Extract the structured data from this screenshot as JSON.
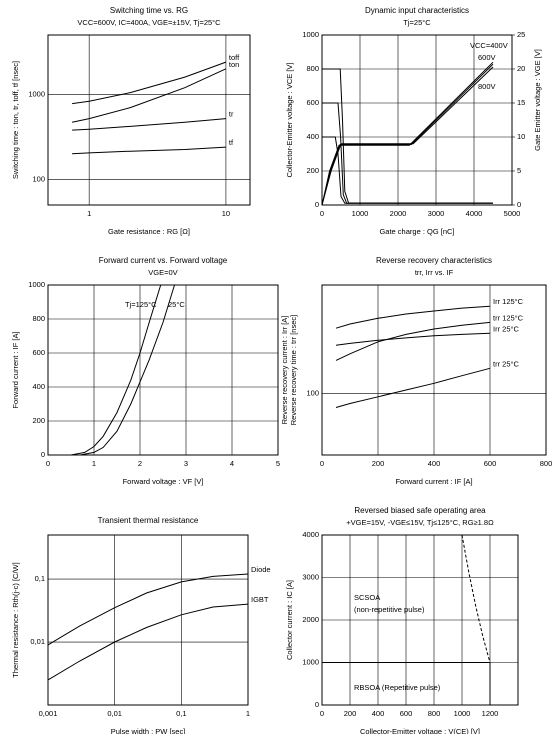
{
  "chart_data": [
    {
      "type": "line",
      "title": "Switching time vs. RG",
      "subtitle": "VCC=600V, IC=400A, VGE=±15V, Tj=25°C",
      "xlabel": "Gate resistance : RG [Ω]",
      "ylabel": "Switching time : ton, tr, toff, tf [nsec]",
      "xscale": "log",
      "yscale": "log",
      "xlim": [
        0.5,
        15
      ],
      "ylim": [
        50,
        5000
      ],
      "xticks": [
        1,
        10
      ],
      "yticks": [
        100,
        1000
      ],
      "grid": true,
      "series": [
        {
          "name": "toff",
          "color": "#000000",
          "x": [
            0.75,
            1,
            2,
            5,
            10
          ],
          "values": [
            780,
            830,
            1050,
            1600,
            2400
          ]
        },
        {
          "name": "ton",
          "color": "#000000",
          "x": [
            0.75,
            1,
            2,
            5,
            10
          ],
          "values": [
            470,
            520,
            700,
            1200,
            2000
          ]
        },
        {
          "name": "tr",
          "color": "#000000",
          "x": [
            0.75,
            1,
            2,
            5,
            10
          ],
          "values": [
            380,
            390,
            420,
            470,
            520
          ]
        },
        {
          "name": "tf",
          "color": "#000000",
          "x": [
            0.75,
            1,
            2,
            5,
            10
          ],
          "values": [
            200,
            205,
            215,
            225,
            240
          ]
        }
      ]
    },
    {
      "type": "line",
      "title": "Dynamic input characteristics",
      "subtitle": "Tj=25°C",
      "xlabel": "Gate charge : QG [nC]",
      "ylabel": "Collector-Emitter voltage : VCE [V]",
      "y2label": "Gate Emitter voltage : VGE [V]",
      "xlim": [
        0,
        5000
      ],
      "xticks": [
        0,
        1000,
        2000,
        3000,
        4000,
        5000
      ],
      "ylim": [
        0,
        1000
      ],
      "yticks": [
        0,
        200,
        400,
        600,
        800,
        1000
      ],
      "y2lim": [
        0,
        25
      ],
      "y2ticks": [
        0,
        5,
        10,
        15,
        20,
        25
      ],
      "grid": true,
      "series": [
        {
          "name": "VCC=400V",
          "color": "#000000",
          "x": [
            0,
            350,
            420,
            500,
            600,
            4500
          ],
          "values": [
            400,
            400,
            300,
            50,
            10,
            10
          ]
        },
        {
          "name": "600V",
          "color": "#000000",
          "x": [
            0,
            420,
            490,
            560,
            650,
            4500
          ],
          "values": [
            600,
            600,
            400,
            60,
            10,
            10
          ]
        },
        {
          "name": "800V",
          "color": "#000000",
          "x": [
            0,
            480,
            540,
            600,
            700,
            4500
          ],
          "values": [
            800,
            800,
            500,
            80,
            12,
            12
          ]
        },
        {
          "color": "#000000",
          "axis": "y2",
          "x": [
            0,
            200,
            450,
            2300,
            4500
          ],
          "values": [
            0,
            5,
            8.8,
            8.8,
            21
          ]
        },
        {
          "color": "#000000",
          "axis": "y2",
          "x": [
            0,
            220,
            480,
            2350,
            4500
          ],
          "values": [
            0,
            5,
            8.9,
            8.9,
            20.7
          ]
        },
        {
          "color": "#000000",
          "axis": "y2",
          "x": [
            0,
            240,
            500,
            2400,
            4500
          ],
          "values": [
            0,
            5,
            9,
            9,
            20.3
          ]
        }
      ]
    },
    {
      "type": "line",
      "title": "Forward current vs. Forward voltage",
      "subtitle": "VGE=0V",
      "xlabel": "Forward voltage : VF [V]",
      "ylabel": "Forward current : IF [A]",
      "xlim": [
        0,
        5
      ],
      "xticks": [
        0,
        1,
        2,
        3,
        4,
        5
      ],
      "ylim": [
        0,
        1000
      ],
      "yticks": [
        0,
        200,
        400,
        600,
        800,
        1000
      ],
      "grid": true,
      "series": [
        {
          "name": "Tj=125°C",
          "color": "#000000",
          "x": [
            0.5,
            0.8,
            1,
            1.2,
            1.5,
            1.8,
            2,
            2.2,
            2.45
          ],
          "values": [
            0,
            15,
            50,
            110,
            250,
            440,
            600,
            780,
            1000
          ]
        },
        {
          "name": "25°C",
          "color": "#000000",
          "x": [
            0.7,
            1,
            1.2,
            1.5,
            1.8,
            2,
            2.2,
            2.5,
            2.75
          ],
          "values": [
            0,
            15,
            45,
            140,
            300,
            430,
            560,
            780,
            1000
          ]
        }
      ]
    },
    {
      "type": "line",
      "title": "Reverse recovery characteristics",
      "subtitle": "trr, Irr vs. IF",
      "xlabel": "Forward current : IF [A]",
      "ylabel": "Reverse recovery current : Irr [A]",
      "ylabel2": "Reverse recovery time : trr [nsec]",
      "yscale": "log",
      "xlim": [
        0,
        800
      ],
      "xticks": [
        0,
        200,
        400,
        600,
        800
      ],
      "ylim": [
        40,
        500
      ],
      "yticks": [
        100
      ],
      "grid": true,
      "series": [
        {
          "name": "Irr 125°C",
          "color": "#000000",
          "x": [
            50,
            100,
            200,
            300,
            400,
            500,
            600
          ],
          "values": [
            263,
            280,
            305,
            325,
            340,
            355,
            365
          ]
        },
        {
          "name": "trr 125°C",
          "color": "#000000",
          "x": [
            50,
            100,
            200,
            300,
            400,
            500,
            600
          ],
          "values": [
            163,
            180,
            215,
            240,
            260,
            275,
            287
          ]
        },
        {
          "name": "Irr 25°C",
          "color": "#000000",
          "x": [
            50,
            100,
            200,
            300,
            400,
            500,
            600
          ],
          "values": [
            204,
            210,
            220,
            228,
            235,
            240,
            244
          ]
        },
        {
          "name": "trr 25°C",
          "color": "#000000",
          "x": [
            50,
            100,
            200,
            300,
            400,
            500,
            600
          ],
          "values": [
            81,
            86,
            95,
            105,
            116,
            130,
            145
          ]
        }
      ]
    },
    {
      "type": "line",
      "title": "Transient thermal resistance",
      "xlabel": "Pulse width : PW  [sec]",
      "ylabel": "Thermal resistance : Rth(j-c) [C/W]",
      "xscale": "log",
      "yscale": "log",
      "xlim": [
        0.001,
        1
      ],
      "xticks": [
        {
          "value": 0.001,
          "label": "0,001"
        },
        {
          "value": 0.01,
          "label": "0,01"
        },
        {
          "value": 0.1,
          "label": "0,1"
        },
        1
      ],
      "ylim": [
        0.001,
        0.5
      ],
      "yticks": [
        {
          "value": 0.01,
          "label": "0,01"
        },
        {
          "value": 0.1,
          "label": "0,1"
        }
      ],
      "grid": true,
      "series": [
        {
          "name": "Diode",
          "color": "#000000",
          "x": [
            0.001,
            0.003,
            0.01,
            0.03,
            0.1,
            0.3,
            1
          ],
          "values": [
            0.009,
            0.018,
            0.035,
            0.06,
            0.09,
            0.11,
            0.12
          ]
        },
        {
          "name": "IGBT",
          "color": "#000000",
          "x": [
            0.001,
            0.003,
            0.01,
            0.03,
            0.1,
            0.3,
            1
          ],
          "values": [
            0.0025,
            0.005,
            0.01,
            0.017,
            0.027,
            0.036,
            0.04
          ]
        }
      ]
    },
    {
      "type": "line",
      "title": "Reversed biased safe operating area",
      "subtitle": "+VGE=15V, -VGE≤15V, Tj≤125°C, RG≥1.8Ω",
      "xlabel": "Collector-Emitter voltage : V(CE) [V]",
      "ylabel": "Collector current : IC [A]",
      "xlim": [
        0,
        1400
      ],
      "xticks": [
        0,
        200,
        400,
        600,
        800,
        1000,
        1200
      ],
      "ylim": [
        0,
        4000
      ],
      "yticks": [
        0,
        1000,
        2000,
        3000,
        4000
      ],
      "grid": true,
      "annotations": [
        "SCSOA",
        "(non-repetitive pulse)",
        "RBSOA (Repetitive pulse)"
      ],
      "series": [
        {
          "name": "SCSOA",
          "color": "#000000",
          "dashed": true,
          "x": [
            1000,
            1050,
            1100,
            1150,
            1200
          ],
          "values": [
            4000,
            3100,
            2300,
            1600,
            1000
          ]
        },
        {
          "name": "RBSOA",
          "color": "#000000",
          "x": [
            0,
            1200,
            1200
          ],
          "values": [
            1000,
            1000,
            0
          ]
        }
      ]
    }
  ]
}
